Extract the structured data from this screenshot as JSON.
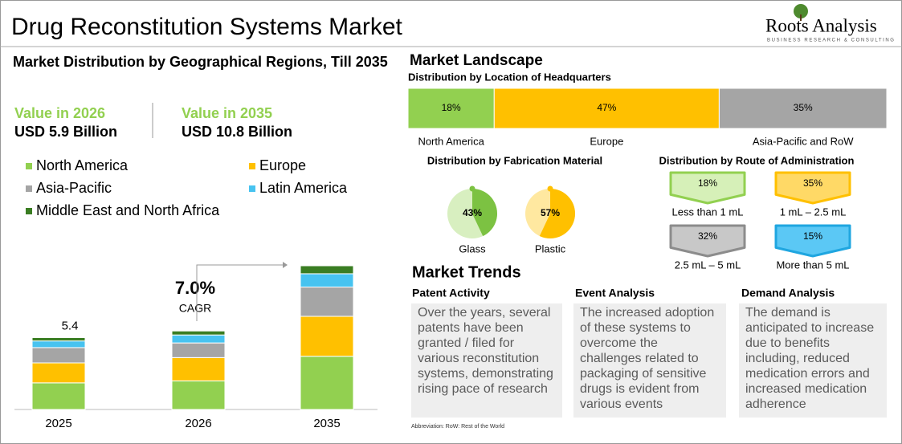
{
  "header": {
    "title": "Drug Reconstitution Systems Market",
    "logo": "Roots Analysis",
    "logo_tagline": "BUSINESS RESEARCH & CONSULTING"
  },
  "market_distribution": {
    "title": "Market Distribution by Geographical Regions, Till 2035",
    "value_2026_label": "Value in 2026",
    "value_2026": "USD 5.9 Billion",
    "value_2035_label": "Value in 2035",
    "value_2035": "USD 10.8 Billion",
    "cagr": "7.0%",
    "cagr_label": "CAGR"
  },
  "market_landscape": {
    "title": "Market Landscape"
  },
  "chart_data": [
    {
      "type": "bar",
      "stacked": true,
      "categories": [
        "2025",
        "2026",
        "2035"
      ],
      "data_label": 5.4,
      "series": [
        {
          "name": "North America",
          "color": "#92d050",
          "values": [
            2.0,
            2.15,
            4.0
          ]
        },
        {
          "name": "Europe",
          "color": "#ffc000",
          "values": [
            1.5,
            1.75,
            3.0
          ]
        },
        {
          "name": "Asia-Pacific",
          "color": "#a5a5a5",
          "values": [
            1.15,
            1.1,
            2.2
          ]
        },
        {
          "name": "Latin America",
          "color": "#47c3f0",
          "values": [
            0.5,
            0.6,
            1.0
          ]
        },
        {
          "name": "Middle East and North Africa",
          "color": "#3a7d22",
          "values": [
            0.25,
            0.3,
            0.6
          ]
        }
      ]
    },
    {
      "type": "stacked100",
      "title": "Distribution by Location of Headquarters",
      "categories": [
        "North America",
        "Europe",
        "Asia-Pacific and RoW"
      ],
      "values": [
        18,
        47,
        35
      ],
      "value_labels": [
        "18%",
        "47%",
        "35%"
      ],
      "colors": [
        "#92d050",
        "#ffc000",
        "#a5a5a5"
      ]
    },
    {
      "type": "pie",
      "title": "Distribution by Fabrication Material",
      "categories": [
        "Glass",
        "Plastic"
      ],
      "values": [
        43,
        57
      ],
      "value_labels": [
        "43%",
        "57%"
      ],
      "colors": [
        "#7cc242",
        "#ffc000"
      ]
    },
    {
      "type": "tile",
      "title": "Distribution by Route of Administration",
      "categories": [
        "Less than 1 mL",
        "1 mL – 2.5 mL",
        "2.5 mL – 5 mL",
        "More than 5 mL"
      ],
      "values": [
        18,
        35,
        32,
        15
      ],
      "value_labels": [
        "18%",
        "35%",
        "32%",
        "15%"
      ],
      "colors": [
        "#92d050",
        "#ffc000",
        "#8c8c8c",
        "#1fa6e0"
      ]
    }
  ],
  "market_trends": {
    "title": "Market Trends",
    "columns": [
      {
        "heading": "Patent Activity",
        "text": "Over the years, several patents have been granted / filed for various reconstitution systems, demonstrating rising pace of research"
      },
      {
        "heading": "Event Analysis",
        "text": "The increased adoption of these systems to overcome the challenges related to packaging of sensitive drugs is evident from various events"
      },
      {
        "heading": "Demand Analysis",
        "text": "The demand is anticipated to increase due to benefits including, reduced medication errors and increased medication adherence"
      }
    ]
  },
  "abbreviation": "Abbreviation: RoW: Rest of the World"
}
